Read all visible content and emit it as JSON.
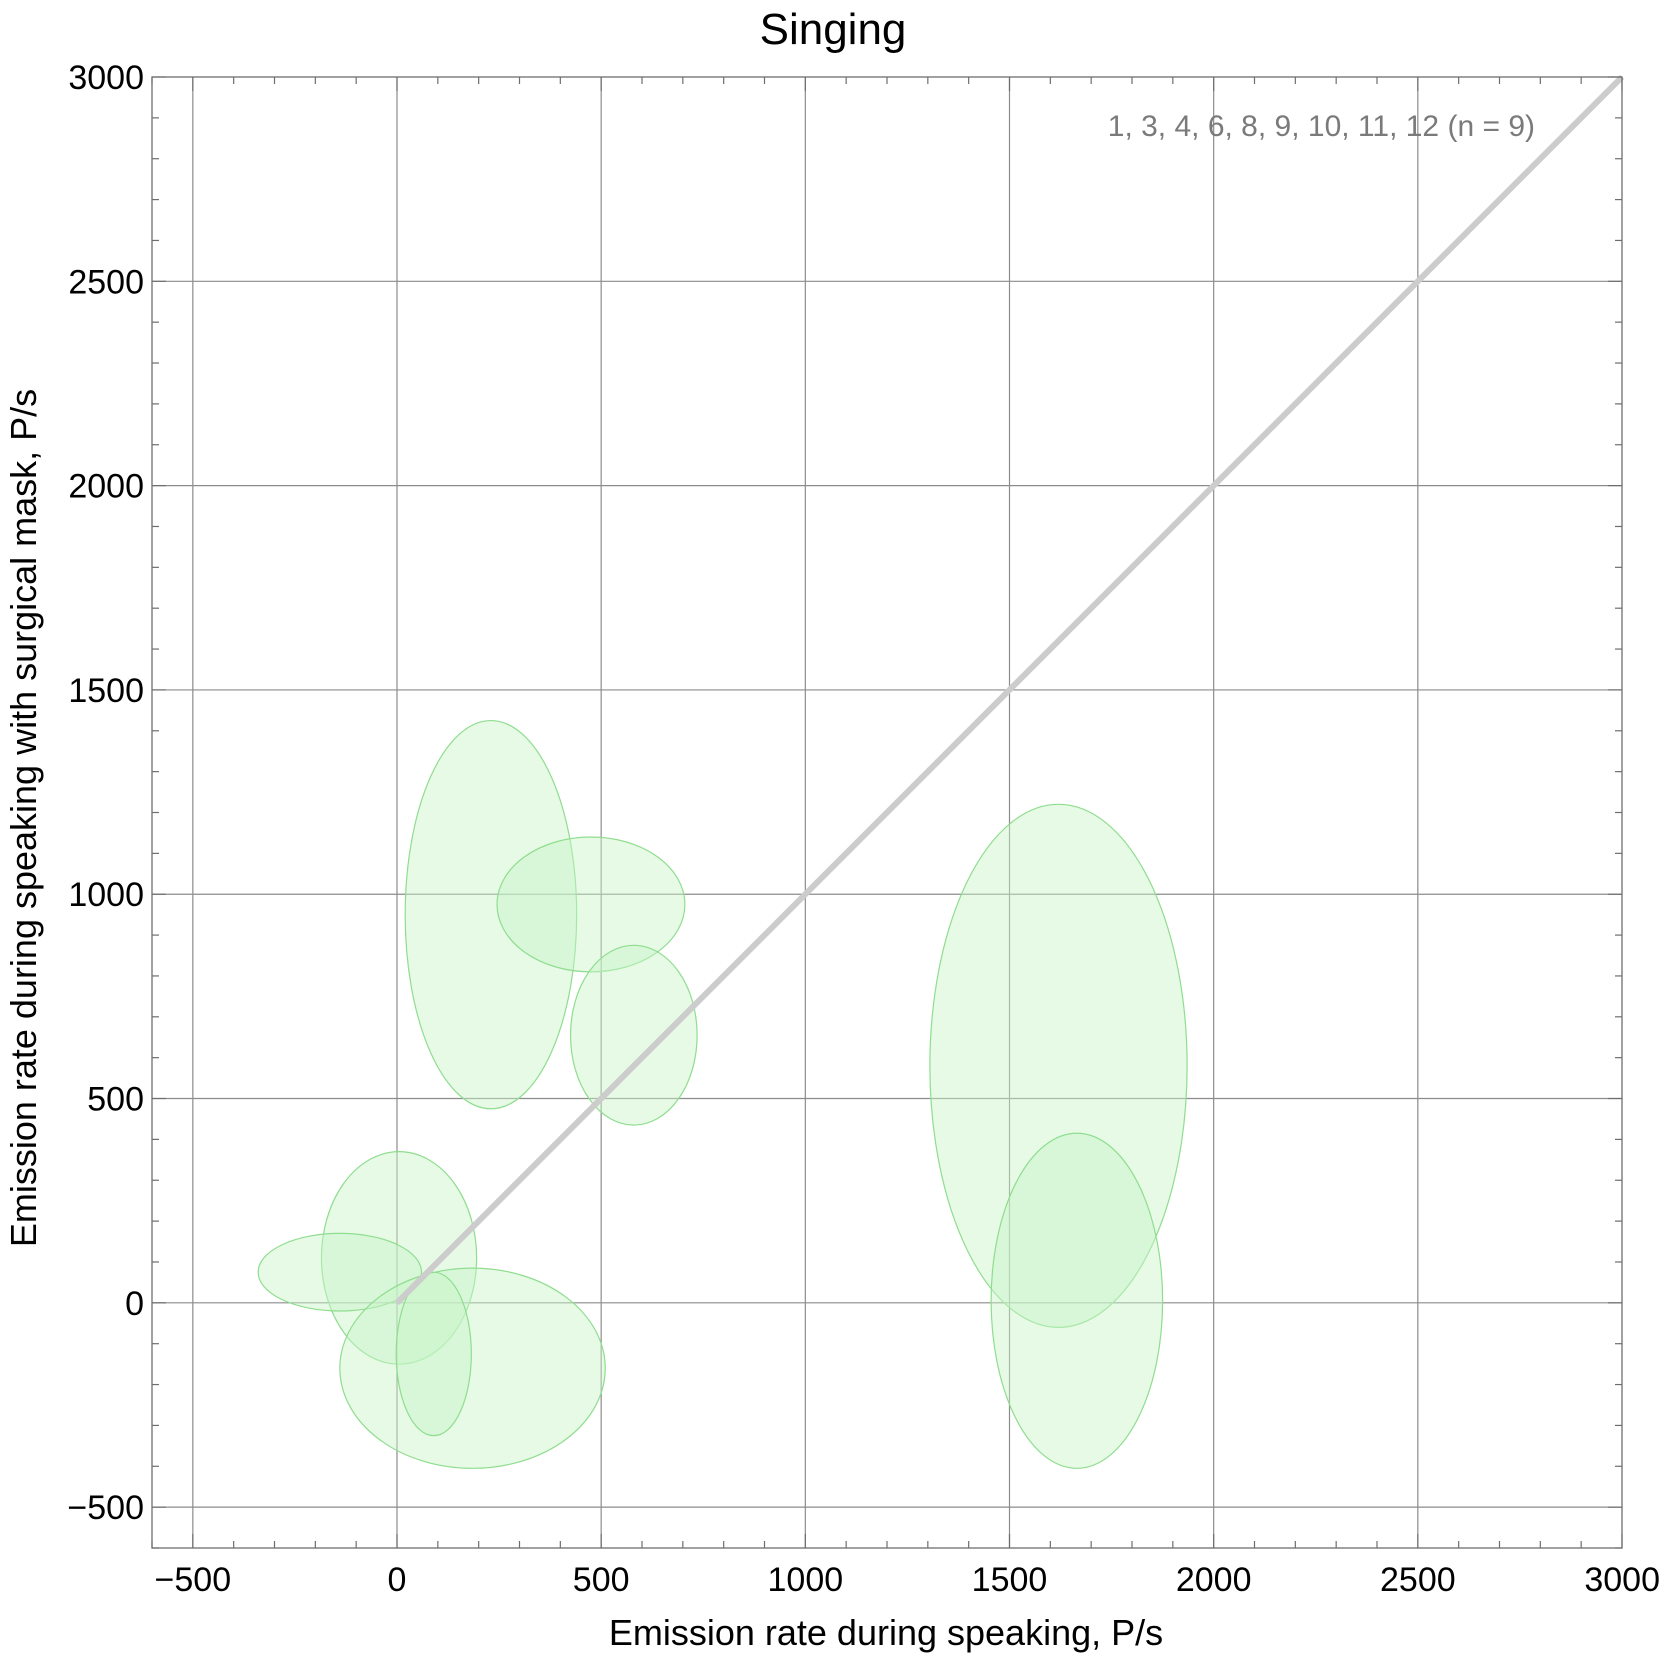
{
  "chart_data": {
    "type": "scatter",
    "title": "Singing",
    "xlabel": "Emission rate during speaking,  P/s",
    "ylabel": "Emission rate during speaking with surgical mask,  P/s",
    "xlim": [
      -600,
      3000
    ],
    "ylim": [
      -600,
      3000
    ],
    "x_ticks": [
      -500,
      0,
      500,
      1000,
      1500,
      2000,
      2500,
      3000
    ],
    "y_ticks": [
      -500,
      0,
      500,
      1000,
      1500,
      2000,
      2500,
      3000
    ],
    "x_tick_labels": [
      "−500",
      "0",
      "500",
      "1000",
      "1500",
      "2000",
      "2500",
      "3000"
    ],
    "y_tick_labels": [
      "−500",
      "0",
      "500",
      "1000",
      "1500",
      "2000",
      "2500",
      "3000"
    ],
    "grid": true,
    "annotation": "1, 3, 4, 6, 8, 9, 10, 11, 12  (n = 9)",
    "reference_line": {
      "from": [
        0,
        0
      ],
      "to": [
        3000,
        3000
      ],
      "color": "#cccccc"
    },
    "ellipse_fill": "#c8f5c8",
    "ellipse_stroke": "#8fdd8f",
    "ellipses": [
      {
        "cx": 230,
        "cy": 950,
        "rx": 210,
        "ry": 475
      },
      {
        "cx": 475,
        "cy": 975,
        "rx": 230,
        "ry": 165
      },
      {
        "cx": 580,
        "cy": 655,
        "rx": 155,
        "ry": 220
      },
      {
        "cx": 1620,
        "cy": 580,
        "rx": 315,
        "ry": 640
      },
      {
        "cx": 1665,
        "cy": 5,
        "rx": 210,
        "ry": 410
      },
      {
        "cx": 5,
        "cy": 110,
        "rx": 190,
        "ry": 260
      },
      {
        "cx": -140,
        "cy": 75,
        "rx": 200,
        "ry": 95
      },
      {
        "cx": 185,
        "cy": -160,
        "rx": 325,
        "ry": 245
      },
      {
        "cx": 90,
        "cy": -125,
        "rx": 92,
        "ry": 200
      }
    ]
  }
}
